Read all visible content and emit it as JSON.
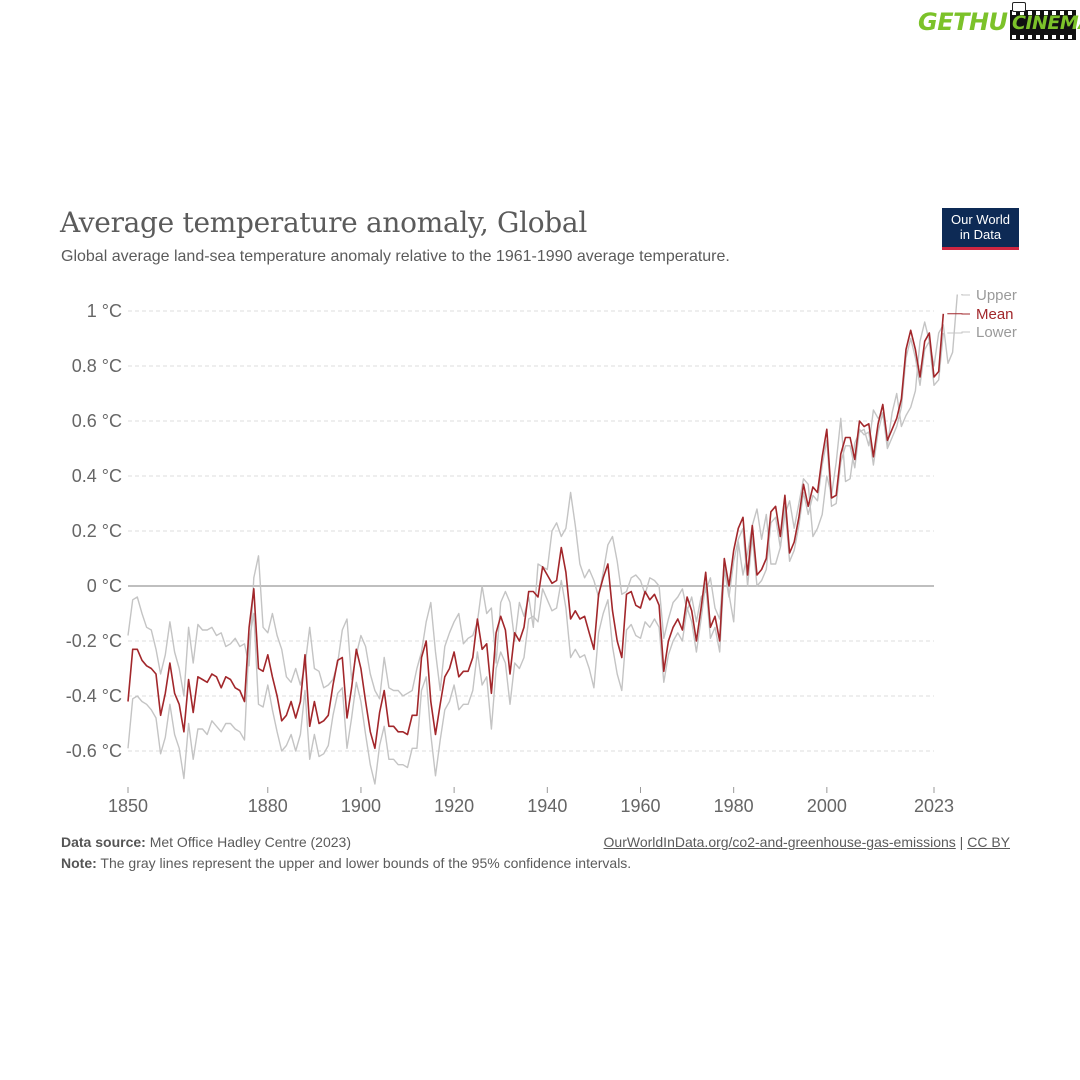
{
  "watermark": {
    "left": "GETHU",
    "right": "CINEMA"
  },
  "header": {
    "title": "Average temperature anomaly, Global",
    "subtitle": "Global average land-sea temperature anomaly relative to the 1961-1990 average temperature.",
    "logo_line1": "Our World",
    "logo_line2": "in Data"
  },
  "footer": {
    "source_label": "Data source:",
    "source_text": "Met Office Hadley Centre (2023)",
    "link_text": "OurWorldInData.org/co2-and-greenhouse-gas-emissions",
    "separator": "|",
    "license": "CC BY",
    "note_label": "Note:",
    "note_text": "The gray lines represent the upper and lower bounds of the 95% confidence intervals."
  },
  "chart_data": {
    "type": "line",
    "title": "Average temperature anomaly, Global",
    "xlabel": "",
    "ylabel": "",
    "xlim": [
      1850,
      2023
    ],
    "ylim": [
      -0.7,
      1.1
    ],
    "x_ticks": [
      1850,
      1880,
      1900,
      1920,
      1940,
      1960,
      1980,
      2000,
      2023
    ],
    "x_tick_labels": [
      "1850",
      "1880",
      "1900",
      "1920",
      "1940",
      "1960",
      "1980",
      "2000",
      "2023"
    ],
    "y_ticks": [
      -0.6,
      -0.4,
      -0.2,
      0,
      0.2,
      0.4,
      0.6,
      0.8,
      1
    ],
    "y_tick_labels": [
      "-0.6 °C",
      "-0.4 °C",
      "-0.2 °C",
      "0 °C",
      "0.2 °C",
      "0.4 °C",
      "0.6 °C",
      "0.8 °C",
      "1 °C"
    ],
    "grid": true,
    "legend_placement": "right end of lines",
    "colors": {
      "mean": "#a2272b",
      "bounds": "#c4c4c4",
      "zero_line": "#aaaaaa",
      "grid": "#dddddd"
    },
    "x_start": 1850,
    "series": [
      {
        "name": "Upper",
        "values": [
          -0.18,
          -0.05,
          -0.04,
          -0.1,
          -0.15,
          -0.16,
          -0.23,
          -0.32,
          -0.25,
          -0.13,
          -0.24,
          -0.3,
          -0.4,
          -0.15,
          -0.28,
          -0.14,
          -0.16,
          -0.16,
          -0.15,
          -0.18,
          -0.17,
          -0.22,
          -0.21,
          -0.19,
          -0.22,
          -0.21,
          -0.29,
          0.03,
          0.11,
          -0.15,
          -0.17,
          -0.1,
          -0.18,
          -0.23,
          -0.33,
          -0.35,
          -0.3,
          -0.36,
          -0.29,
          -0.15,
          -0.3,
          -0.31,
          -0.37,
          -0.36,
          -0.34,
          -0.28,
          -0.16,
          -0.12,
          -0.34,
          -0.25,
          -0.18,
          -0.22,
          -0.32,
          -0.38,
          -0.41,
          -0.26,
          -0.37,
          -0.38,
          -0.38,
          -0.4,
          -0.39,
          -0.38,
          -0.3,
          -0.24,
          -0.13,
          -0.06,
          -0.24,
          -0.38,
          -0.22,
          -0.17,
          -0.13,
          -0.1,
          -0.21,
          -0.19,
          -0.18,
          -0.13,
          0.0,
          -0.1,
          -0.08,
          -0.28,
          -0.06,
          -0.02,
          -0.06,
          -0.2,
          -0.06,
          -0.11,
          -0.04,
          -0.15,
          0.08,
          0.07,
          0.06,
          0.2,
          0.23,
          0.18,
          0.21,
          0.34,
          0.22,
          0.08,
          0.03,
          0.06,
          0.02,
          -0.04,
          0.05,
          0.15,
          0.18,
          0.09,
          -0.03,
          -0.02,
          0.03,
          0.04,
          0.02,
          -0.03,
          0.03,
          0.02,
          0.0,
          -0.19,
          -0.12,
          -0.06,
          -0.04,
          -0.01,
          -0.09,
          -0.04,
          -0.13,
          -0.04,
          -0.02,
          0.03,
          -0.08,
          -0.12,
          0.09,
          -0.03,
          -0.13,
          0.16,
          0.04,
          0.12,
          0.22,
          0.28,
          0.17,
          0.26,
          0.08,
          0.08,
          0.14,
          0.26,
          0.31,
          0.21,
          0.3,
          0.39,
          0.37,
          0.18,
          0.21,
          0.26,
          0.4,
          0.33,
          0.45,
          0.61,
          0.38,
          0.39,
          0.52,
          0.56,
          0.57,
          0.51,
          0.64,
          0.61,
          0.63,
          0.51,
          0.63,
          0.7,
          0.58,
          0.62,
          0.65,
          0.71,
          0.89,
          0.96,
          0.89,
          0.8,
          0.92,
          0.95,
          0.81,
          0.85,
          1.06
        ]
      },
      {
        "name": "Mean",
        "values": [
          -0.42,
          -0.23,
          -0.23,
          -0.27,
          -0.29,
          -0.3,
          -0.32,
          -0.47,
          -0.39,
          -0.28,
          -0.39,
          -0.43,
          -0.53,
          -0.34,
          -0.46,
          -0.33,
          -0.34,
          -0.35,
          -0.32,
          -0.33,
          -0.37,
          -0.33,
          -0.34,
          -0.37,
          -0.38,
          -0.42,
          -0.15,
          -0.01,
          -0.3,
          -0.31,
          -0.25,
          -0.33,
          -0.4,
          -0.49,
          -0.47,
          -0.42,
          -0.48,
          -0.42,
          -0.25,
          -0.51,
          -0.42,
          -0.5,
          -0.49,
          -0.47,
          -0.36,
          -0.27,
          -0.26,
          -0.48,
          -0.37,
          -0.23,
          -0.3,
          -0.42,
          -0.53,
          -0.59,
          -0.46,
          -0.38,
          -0.51,
          -0.51,
          -0.53,
          -0.53,
          -0.54,
          -0.47,
          -0.47,
          -0.26,
          -0.2,
          -0.42,
          -0.54,
          -0.43,
          -0.33,
          -0.3,
          -0.24,
          -0.33,
          -0.31,
          -0.31,
          -0.26,
          -0.12,
          -0.23,
          -0.21,
          -0.39,
          -0.17,
          -0.11,
          -0.16,
          -0.32,
          -0.17,
          -0.2,
          -0.15,
          -0.02,
          -0.02,
          -0.04,
          0.07,
          0.04,
          0.01,
          0.02,
          0.14,
          0.05,
          -0.12,
          -0.09,
          -0.12,
          -0.11,
          -0.17,
          -0.23,
          -0.03,
          0.03,
          0.08,
          -0.09,
          -0.2,
          -0.26,
          -0.03,
          -0.02,
          -0.07,
          -0.08,
          -0.02,
          -0.05,
          -0.03,
          -0.07,
          -0.31,
          -0.2,
          -0.15,
          -0.12,
          -0.16,
          -0.04,
          -0.09,
          -0.2,
          -0.08,
          0.05,
          -0.15,
          -0.11,
          -0.2,
          0.1,
          0.0,
          0.13,
          0.21,
          0.25,
          0.04,
          0.22,
          0.04,
          0.06,
          0.1,
          0.27,
          0.29,
          0.18,
          0.33,
          0.12,
          0.16,
          0.25,
          0.37,
          0.29,
          0.36,
          0.34,
          0.47,
          0.57,
          0.32,
          0.33,
          0.48,
          0.54,
          0.54,
          0.46,
          0.6,
          0.58,
          0.59,
          0.47,
          0.59,
          0.66,
          0.53,
          0.57,
          0.61,
          0.68,
          0.86,
          0.93,
          0.86,
          0.76,
          0.89,
          0.92,
          0.76,
          0.78,
          0.99
        ]
      },
      {
        "name": "Lower",
        "values": [
          -0.59,
          -0.41,
          -0.4,
          -0.42,
          -0.43,
          -0.45,
          -0.48,
          -0.61,
          -0.55,
          -0.43,
          -0.54,
          -0.59,
          -0.7,
          -0.5,
          -0.63,
          -0.52,
          -0.52,
          -0.54,
          -0.49,
          -0.51,
          -0.53,
          -0.5,
          -0.5,
          -0.52,
          -0.53,
          -0.56,
          -0.2,
          -0.1,
          -0.43,
          -0.44,
          -0.36,
          -0.45,
          -0.53,
          -0.6,
          -0.58,
          -0.54,
          -0.6,
          -0.54,
          -0.38,
          -0.63,
          -0.54,
          -0.62,
          -0.61,
          -0.58,
          -0.47,
          -0.39,
          -0.37,
          -0.59,
          -0.48,
          -0.35,
          -0.42,
          -0.54,
          -0.65,
          -0.72,
          -0.58,
          -0.51,
          -0.63,
          -0.63,
          -0.65,
          -0.65,
          -0.66,
          -0.59,
          -0.59,
          -0.38,
          -0.33,
          -0.54,
          -0.69,
          -0.56,
          -0.45,
          -0.42,
          -0.36,
          -0.45,
          -0.43,
          -0.43,
          -0.38,
          -0.24,
          -0.36,
          -0.33,
          -0.52,
          -0.3,
          -0.24,
          -0.28,
          -0.43,
          -0.28,
          -0.3,
          -0.26,
          -0.12,
          -0.11,
          -0.13,
          -0.01,
          -0.05,
          -0.09,
          -0.08,
          0.02,
          -0.08,
          -0.26,
          -0.23,
          -0.26,
          -0.25,
          -0.3,
          -0.37,
          -0.17,
          -0.1,
          -0.05,
          -0.22,
          -0.32,
          -0.38,
          -0.16,
          -0.14,
          -0.18,
          -0.19,
          -0.13,
          -0.15,
          -0.12,
          -0.15,
          -0.35,
          -0.25,
          -0.2,
          -0.17,
          -0.2,
          -0.08,
          -0.13,
          -0.24,
          -0.12,
          0.01,
          -0.19,
          -0.15,
          -0.24,
          0.06,
          -0.04,
          0.09,
          0.17,
          0.21,
          0.0,
          0.18,
          0.0,
          0.02,
          0.06,
          0.23,
          0.25,
          0.14,
          0.29,
          0.09,
          0.13,
          0.22,
          0.34,
          0.26,
          0.33,
          0.31,
          0.44,
          0.53,
          0.29,
          0.3,
          0.45,
          0.51,
          0.51,
          0.43,
          0.57,
          0.55,
          0.56,
          0.44,
          0.56,
          0.63,
          0.5,
          0.54,
          0.58,
          0.65,
          0.83,
          0.9,
          0.83,
          0.73,
          0.86,
          0.89,
          0.73,
          0.75,
          0.92
        ]
      }
    ]
  }
}
